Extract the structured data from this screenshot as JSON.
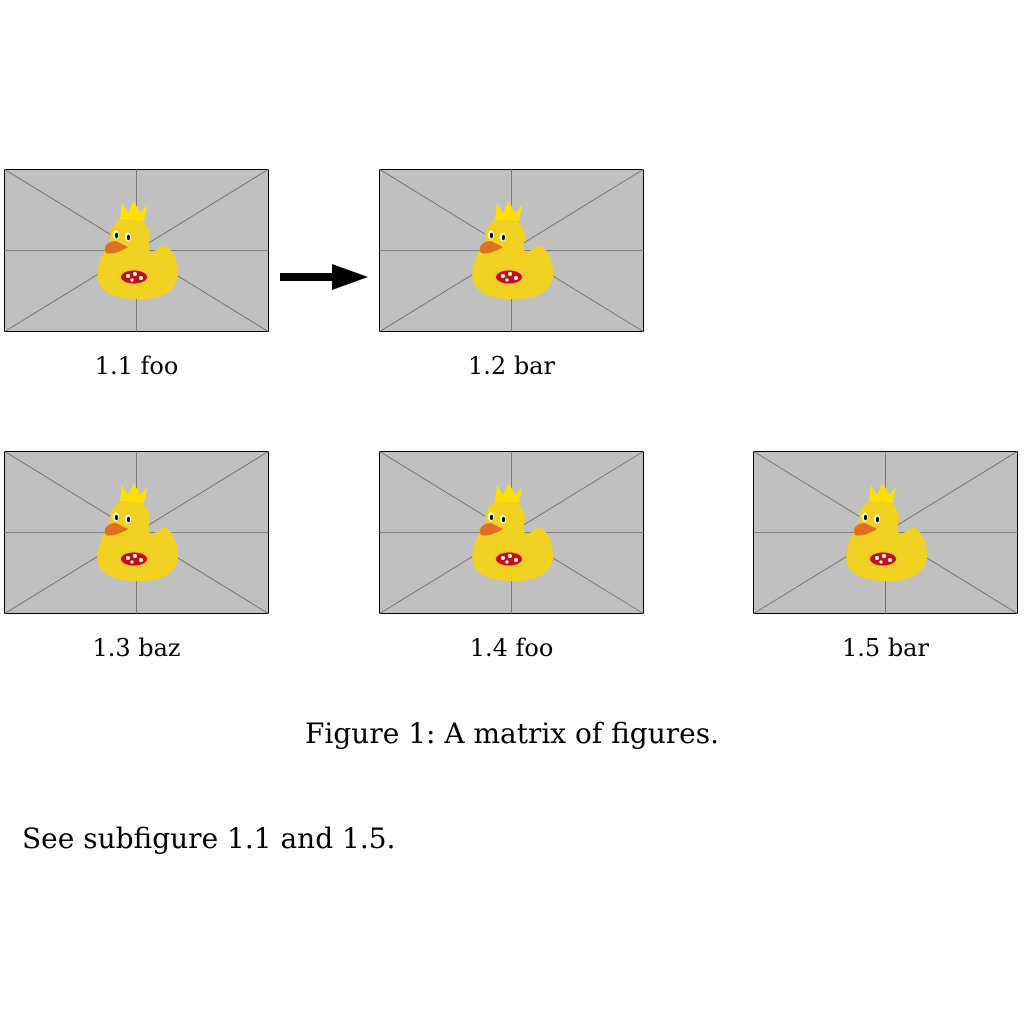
{
  "subfigures": [
    {
      "caption": "1.1 foo"
    },
    {
      "caption": "1.2 bar"
    },
    {
      "caption": "1.3 baz"
    },
    {
      "caption": "1.4 foo"
    },
    {
      "caption": "1.5 bar"
    }
  ],
  "figure": {
    "caption": "Figure 1: A matrix of figures."
  },
  "body": {
    "paragraph": "See subfigure 1.1 and 1.5."
  },
  "icons": {
    "placeholder": "placeholder-duck-image",
    "arrow": "right-arrow-icon"
  },
  "colors": {
    "placeholder_bg": "#c0c0c0",
    "duck_body": "#f0d020",
    "crown": "#ffe000",
    "beak": "#e07020",
    "pizza": "#c01010"
  }
}
